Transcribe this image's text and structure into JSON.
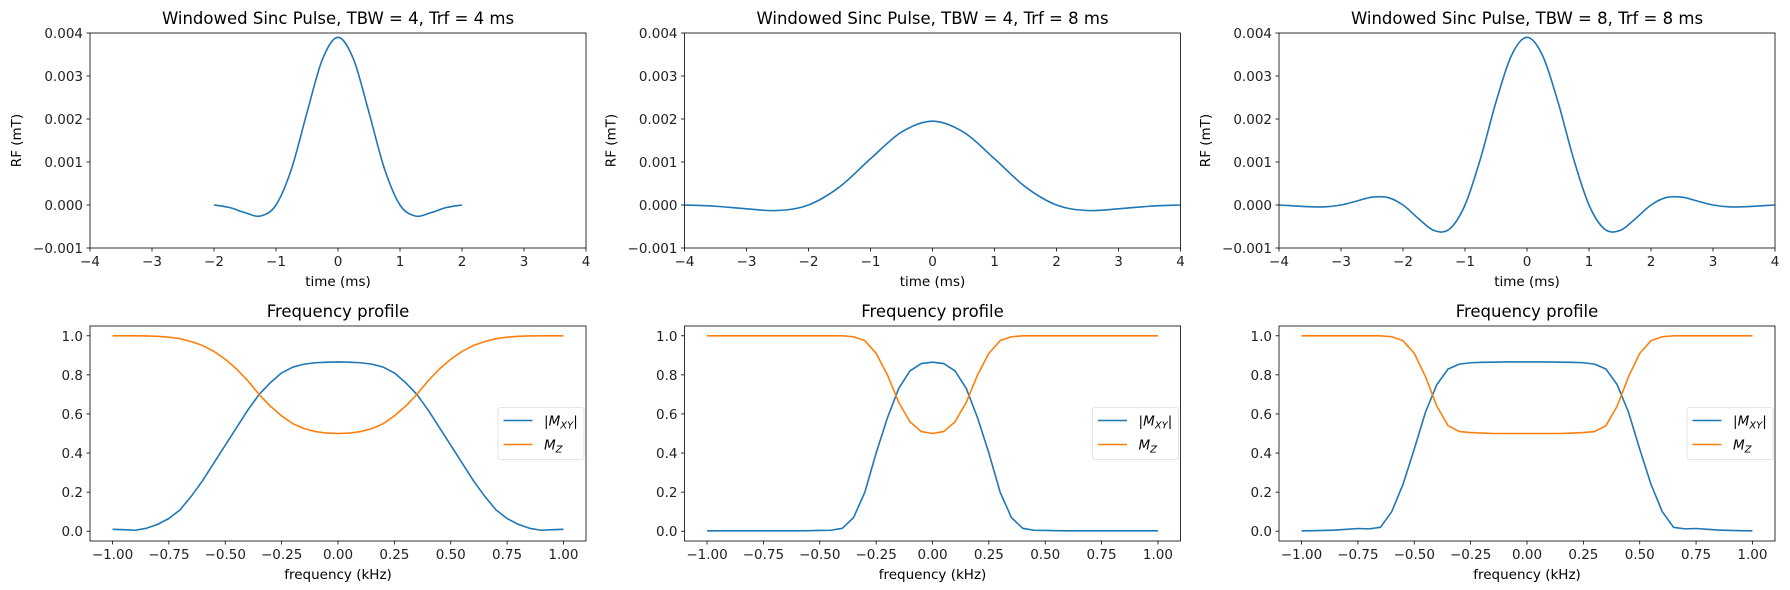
{
  "colors": {
    "mxy": "#1f77b4",
    "mz": "#ff7f0e",
    "pulse": "#1f77b4"
  },
  "chart_data": [
    {
      "type": "line",
      "title": "Windowed Sinc Pulse, TBW = 4, Trf = 4 ms",
      "xlabel": "time (ms)",
      "ylabel": "RF (mT)",
      "xlim": [
        -4,
        4
      ],
      "ylim": [
        -0.001,
        0.004
      ],
      "xticks": [
        -4,
        -3,
        -2,
        -1,
        0,
        1,
        2,
        3,
        4
      ],
      "xtick_labels": [
        "−4",
        "−3",
        "−2",
        "−1",
        "0",
        "1",
        "2",
        "3",
        "4"
      ],
      "yticks": [
        -0.001,
        0,
        0.001,
        0.002,
        0.003,
        0.004
      ],
      "ytick_labels": [
        "−0.001",
        "0.000",
        "0.001",
        "0.002",
        "0.003",
        "0.004"
      ],
      "series": [
        {
          "name": "RF",
          "x": [
            -2,
            -1.75,
            -1.5,
            -1.25,
            -1,
            -0.75,
            -0.5,
            -0.25,
            0,
            0.25,
            0.5,
            0.75,
            1,
            1.25,
            1.5,
            1.75,
            2
          ],
          "y": [
            0,
            -5.8e-05,
            -0.000178,
            -0.000256,
            0,
            0.00084,
            0.00215,
            0.00339,
            0.0039,
            0.00339,
            0.00215,
            0.00084,
            0,
            -0.000256,
            -0.000178,
            -5.8e-05,
            0
          ]
        }
      ]
    },
    {
      "type": "line",
      "title": "Windowed Sinc Pulse, TBW = 4, Trf = 8 ms",
      "xlabel": "time (ms)",
      "ylabel": "RF (mT)",
      "xlim": [
        -4,
        4
      ],
      "ylim": [
        -0.001,
        0.004
      ],
      "xticks": [
        -4,
        -3,
        -2,
        -1,
        0,
        1,
        2,
        3,
        4
      ],
      "xtick_labels": [
        "−4",
        "−3",
        "−2",
        "−1",
        "0",
        "1",
        "2",
        "3",
        "4"
      ],
      "yticks": [
        -0.001,
        0,
        0.001,
        0.002,
        0.003,
        0.004
      ],
      "ytick_labels": [
        "−0.001",
        "0.000",
        "0.001",
        "0.002",
        "0.003",
        "0.004"
      ],
      "series": [
        {
          "name": "RF",
          "x": [
            -4,
            -3.5,
            -3,
            -2.5,
            -2,
            -1.5,
            -1,
            -0.5,
            0,
            0.5,
            1,
            1.5,
            2,
            2.5,
            3,
            3.5,
            4
          ],
          "y": [
            0,
            -2.9e-05,
            -8.9e-05,
            -0.000128,
            0,
            0.00042,
            0.001075,
            0.001695,
            0.00195,
            0.001695,
            0.001075,
            0.00042,
            0,
            -0.000128,
            -8.9e-05,
            -2.9e-05,
            0
          ]
        }
      ]
    },
    {
      "type": "line",
      "title": "Windowed Sinc Pulse, TBW = 8, Trf = 8 ms",
      "xlabel": "time (ms)",
      "ylabel": "RF (mT)",
      "xlim": [
        -4,
        4
      ],
      "ylim": [
        -0.001,
        0.004
      ],
      "xticks": [
        -4,
        -3,
        -2,
        -1,
        0,
        1,
        2,
        3,
        4
      ],
      "xtick_labels": [
        "−4",
        "−3",
        "−2",
        "−1",
        "0",
        "1",
        "2",
        "3",
        "4"
      ],
      "yticks": [
        -0.001,
        0,
        0.001,
        0.002,
        0.003,
        0.004
      ],
      "ytick_labels": [
        "−0.001",
        "0.000",
        "0.001",
        "0.002",
        "0.003",
        "0.004"
      ],
      "series": [
        {
          "name": "RF",
          "x": [
            -4,
            -3.75,
            -3.5,
            -3.25,
            -3,
            -2.75,
            -2.5,
            -2.25,
            -2,
            -1.75,
            -1.5,
            -1.25,
            -1,
            -0.75,
            -0.5,
            -0.25,
            0,
            0.25,
            0.5,
            0.75,
            1,
            1.25,
            1.5,
            1.75,
            2,
            2.25,
            2.5,
            2.75,
            3,
            3.25,
            3.5,
            3.75,
            4
          ],
          "y": [
            0,
            -2.08e-05,
            -4.08e-05,
            -4.25e-05,
            0,
            9.1e-05,
            0.000181,
            0.000176,
            0,
            -0.000316,
            -0.000593,
            -0.000559,
            0,
            0.00108,
            0.002396,
            0.00348,
            0.0039,
            0.00348,
            0.002396,
            0.00108,
            0,
            -0.000559,
            -0.000593,
            -0.000316,
            0,
            0.000176,
            0.000181,
            9.1e-05,
            0,
            -4.25e-05,
            -4.08e-05,
            -2.08e-05,
            0
          ]
        }
      ]
    },
    {
      "type": "line",
      "title": "Frequency profile",
      "xlabel": "frequency (kHz)",
      "ylabel": "",
      "xlim": [
        -1.1,
        1.1
      ],
      "ylim": [
        -0.05,
        1.05
      ],
      "xticks": [
        -1,
        -0.75,
        -0.5,
        -0.25,
        0,
        0.25,
        0.5,
        0.75,
        1
      ],
      "xtick_labels": [
        "−1.00",
        "−0.75",
        "−0.50",
        "−0.25",
        "0.00",
        "0.25",
        "0.50",
        "0.75",
        "1.00"
      ],
      "yticks": [
        0,
        0.2,
        0.4,
        0.6,
        0.8,
        1.0
      ],
      "ytick_labels": [
        "0.0",
        "0.2",
        "0.4",
        "0.6",
        "0.8",
        "1.0"
      ],
      "legend": "center right",
      "x": [
        -1,
        -0.95,
        -0.9,
        -0.85,
        -0.8,
        -0.75,
        -0.7,
        -0.65,
        -0.6,
        -0.55,
        -0.5,
        -0.45,
        -0.4,
        -0.35,
        -0.3,
        -0.25,
        -0.2,
        -0.15,
        -0.1,
        -0.05,
        0,
        0.05,
        0.1,
        0.15,
        0.2,
        0.25,
        0.3,
        0.35,
        0.4,
        0.45,
        0.5,
        0.55,
        0.6,
        0.65,
        0.7,
        0.75,
        0.8,
        0.85,
        0.9,
        0.95,
        1
      ],
      "series": [
        {
          "name": "|M_XY|",
          "key": "mxy",
          "y": [
            0.01,
            0.008,
            0.005,
            0.015,
            0.035,
            0.065,
            0.11,
            0.18,
            0.26,
            0.35,
            0.44,
            0.53,
            0.62,
            0.7,
            0.76,
            0.81,
            0.84,
            0.855,
            0.862,
            0.865,
            0.866,
            0.865,
            0.862,
            0.855,
            0.84,
            0.81,
            0.76,
            0.7,
            0.62,
            0.53,
            0.44,
            0.35,
            0.26,
            0.18,
            0.11,
            0.065,
            0.035,
            0.015,
            0.005,
            0.008,
            0.01
          ]
        },
        {
          "name": "M_Z",
          "key": "mz",
          "y": [
            1,
            1,
            1,
            0.999,
            0.997,
            0.993,
            0.985,
            0.97,
            0.95,
            0.92,
            0.88,
            0.83,
            0.77,
            0.7,
            0.64,
            0.59,
            0.55,
            0.525,
            0.51,
            0.502,
            0.5,
            0.502,
            0.51,
            0.525,
            0.55,
            0.59,
            0.64,
            0.7,
            0.77,
            0.83,
            0.88,
            0.92,
            0.95,
            0.97,
            0.985,
            0.993,
            0.997,
            0.999,
            1,
            1,
            1
          ]
        }
      ]
    },
    {
      "type": "line",
      "title": "Frequency profile",
      "xlabel": "frequency (kHz)",
      "ylabel": "",
      "xlim": [
        -1.1,
        1.1
      ],
      "ylim": [
        -0.05,
        1.05
      ],
      "xticks": [
        -1,
        -0.75,
        -0.5,
        -0.25,
        0,
        0.25,
        0.5,
        0.75,
        1
      ],
      "xtick_labels": [
        "−1.00",
        "−0.75",
        "−0.50",
        "−0.25",
        "0.00",
        "0.25",
        "0.50",
        "0.75",
        "1.00"
      ],
      "yticks": [
        0,
        0.2,
        0.4,
        0.6,
        0.8,
        1.0
      ],
      "ytick_labels": [
        "0.0",
        "0.2",
        "0.4",
        "0.6",
        "0.8",
        "1.0"
      ],
      "legend": "center right",
      "x": [
        -1,
        -0.95,
        -0.9,
        -0.85,
        -0.8,
        -0.75,
        -0.7,
        -0.65,
        -0.6,
        -0.55,
        -0.5,
        -0.45,
        -0.4,
        -0.35,
        -0.3,
        -0.25,
        -0.2,
        -0.15,
        -0.1,
        -0.05,
        0,
        0.05,
        0.1,
        0.15,
        0.2,
        0.25,
        0.3,
        0.35,
        0.4,
        0.45,
        0.5,
        0.55,
        0.6,
        0.65,
        0.7,
        0.75,
        0.8,
        0.85,
        0.9,
        0.95,
        1
      ],
      "series": [
        {
          "name": "|M_XY|",
          "key": "mxy",
          "y": [
            0.002,
            0.002,
            0.002,
            0.002,
            0.002,
            0.002,
            0.002,
            0.002,
            0.002,
            0.003,
            0.004,
            0.005,
            0.015,
            0.07,
            0.2,
            0.4,
            0.58,
            0.73,
            0.82,
            0.858,
            0.865,
            0.858,
            0.82,
            0.73,
            0.58,
            0.4,
            0.2,
            0.07,
            0.015,
            0.005,
            0.004,
            0.003,
            0.002,
            0.002,
            0.002,
            0.002,
            0.002,
            0.002,
            0.002,
            0.002,
            0.002
          ]
        },
        {
          "name": "M_Z",
          "key": "mz",
          "y": [
            1,
            1,
            1,
            1,
            1,
            1,
            1,
            1,
            1,
            1,
            1,
            1,
            1,
            0.995,
            0.975,
            0.91,
            0.8,
            0.66,
            0.56,
            0.51,
            0.5,
            0.51,
            0.56,
            0.66,
            0.8,
            0.91,
            0.975,
            0.995,
            1,
            1,
            1,
            1,
            1,
            1,
            1,
            1,
            1,
            1,
            1,
            1,
            1
          ]
        }
      ]
    },
    {
      "type": "line",
      "title": "Frequency profile",
      "xlabel": "frequency (kHz)",
      "ylabel": "",
      "xlim": [
        -1.1,
        1.1
      ],
      "ylim": [
        -0.05,
        1.05
      ],
      "xticks": [
        -1,
        -0.75,
        -0.5,
        -0.25,
        0,
        0.25,
        0.5,
        0.75,
        1
      ],
      "xtick_labels": [
        "−1.00",
        "−0.75",
        "−0.50",
        "−0.25",
        "0.00",
        "0.25",
        "0.50",
        "0.75",
        "1.00"
      ],
      "yticks": [
        0,
        0.2,
        0.4,
        0.6,
        0.8,
        1.0
      ],
      "ytick_labels": [
        "0.0",
        "0.2",
        "0.4",
        "0.6",
        "0.8",
        "1.0"
      ],
      "legend": "center right",
      "x": [
        -1,
        -0.95,
        -0.9,
        -0.85,
        -0.8,
        -0.75,
        -0.7,
        -0.65,
        -0.6,
        -0.55,
        -0.5,
        -0.45,
        -0.4,
        -0.35,
        -0.3,
        -0.25,
        -0.2,
        -0.15,
        -0.1,
        -0.05,
        0,
        0.05,
        0.1,
        0.15,
        0.2,
        0.25,
        0.3,
        0.35,
        0.4,
        0.45,
        0.5,
        0.55,
        0.6,
        0.65,
        0.7,
        0.75,
        0.8,
        0.85,
        0.9,
        0.95,
        1
      ],
      "series": [
        {
          "name": "|M_XY|",
          "key": "mxy",
          "y": [
            0.002,
            0.003,
            0.004,
            0.006,
            0.01,
            0.014,
            0.012,
            0.02,
            0.1,
            0.24,
            0.42,
            0.61,
            0.75,
            0.83,
            0.855,
            0.862,
            0.864,
            0.865,
            0.866,
            0.866,
            0.866,
            0.866,
            0.866,
            0.865,
            0.864,
            0.862,
            0.855,
            0.83,
            0.75,
            0.61,
            0.42,
            0.24,
            0.1,
            0.02,
            0.012,
            0.014,
            0.01,
            0.006,
            0.004,
            0.003,
            0.002
          ]
        },
        {
          "name": "M_Z",
          "key": "mz",
          "y": [
            1,
            1,
            1,
            1,
            1,
            1,
            1,
            1,
            0.995,
            0.975,
            0.91,
            0.79,
            0.64,
            0.54,
            0.51,
            0.505,
            0.502,
            0.5,
            0.5,
            0.5,
            0.5,
            0.5,
            0.5,
            0.5,
            0.502,
            0.505,
            0.51,
            0.54,
            0.64,
            0.79,
            0.91,
            0.975,
            0.995,
            1,
            1,
            1,
            1,
            1,
            1,
            1,
            1
          ]
        }
      ]
    }
  ]
}
